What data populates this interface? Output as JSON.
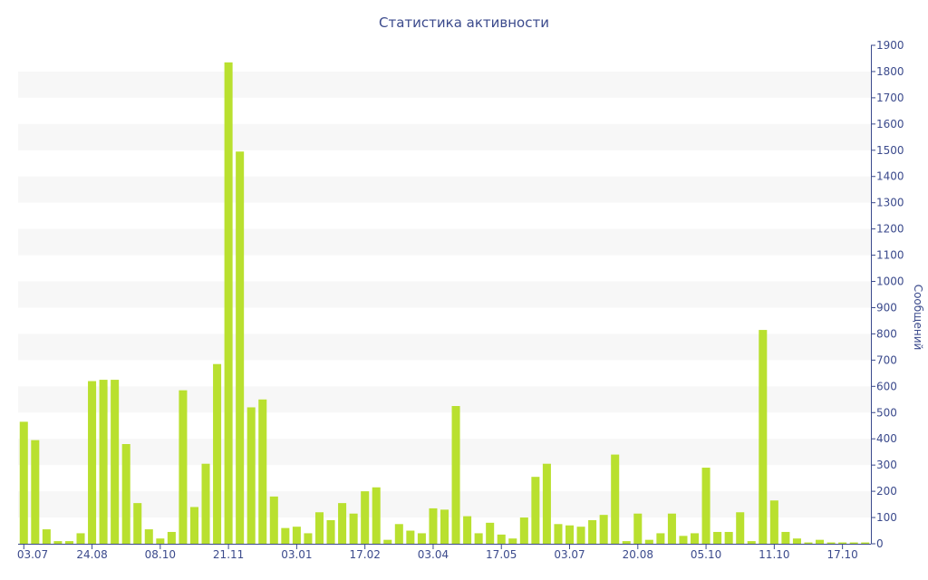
{
  "chart_data": {
    "type": "bar",
    "title": "Статистика активности",
    "xlabel": "",
    "ylabel": "Сообщений",
    "ylim": [
      0,
      1900
    ],
    "y_ticks": [
      0,
      100,
      200,
      300,
      400,
      500,
      600,
      700,
      800,
      900,
      1000,
      1100,
      1200,
      1300,
      1400,
      1500,
      1600,
      1700,
      1800,
      1900
    ],
    "x_tick_labels": [
      {
        "index": 0,
        "label": "03.07"
      },
      {
        "index": 6,
        "label": "24.08"
      },
      {
        "index": 12,
        "label": "08.10"
      },
      {
        "index": 18,
        "label": "21.11"
      },
      {
        "index": 24,
        "label": "03.01"
      },
      {
        "index": 30,
        "label": "17.02"
      },
      {
        "index": 36,
        "label": "03.04"
      },
      {
        "index": 42,
        "label": "17.05"
      },
      {
        "index": 48,
        "label": "03.07"
      },
      {
        "index": 54,
        "label": "20.08"
      },
      {
        "index": 60,
        "label": "05.10"
      },
      {
        "index": 66,
        "label": "11.10"
      },
      {
        "index": 72,
        "label": "17.10"
      }
    ],
    "values": [
      465,
      395,
      55,
      10,
      10,
      40,
      620,
      625,
      625,
      380,
      155,
      55,
      20,
      45,
      585,
      140,
      305,
      685,
      1835,
      1495,
      520,
      550,
      180,
      60,
      65,
      40,
      120,
      90,
      155,
      115,
      200,
      215,
      15,
      75,
      50,
      40,
      135,
      130,
      525,
      105,
      40,
      80,
      35,
      20,
      100,
      255,
      305,
      75,
      70,
      65,
      90,
      110,
      340,
      10,
      115,
      15,
      40,
      115,
      30,
      40,
      290,
      45,
      45,
      120,
      10,
      815,
      165,
      45,
      20,
      5,
      15,
      5,
      5,
      5,
      5
    ],
    "bar_color": "#b9e02f",
    "band_color": "#f7f7f7",
    "text_color": "#3b4a8c",
    "axis_color": "#3b4a8c",
    "grid": "alternating-bands",
    "y_axis_side": "right",
    "legend": "none"
  }
}
